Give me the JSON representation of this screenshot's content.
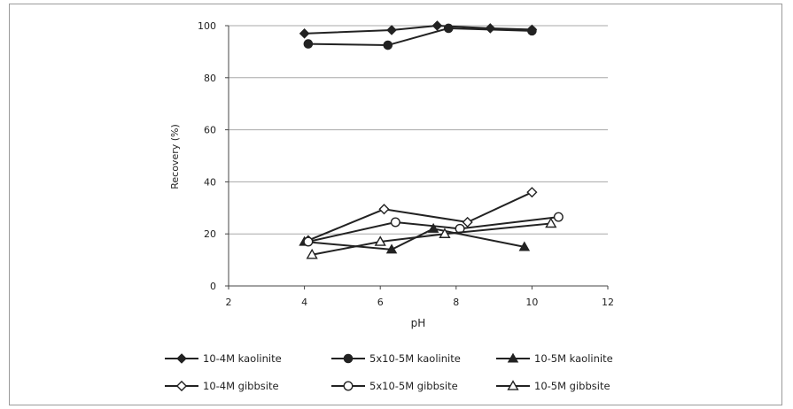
{
  "chart_data": {
    "type": "line",
    "title": "",
    "xlabel": "pH",
    "ylabel": "Recovery (%)",
    "xlim": [
      2,
      12
    ],
    "ylim": [
      0,
      100
    ],
    "xticks": [
      2,
      4,
      6,
      8,
      10,
      12
    ],
    "yticks": [
      0,
      20,
      40,
      60,
      80,
      100
    ],
    "grid": "horizontal",
    "legend_position": "bottom",
    "series": [
      {
        "name": "10-4M kaolinite",
        "marker": "diamond-filled",
        "color": "#222222",
        "points": [
          [
            4.0,
            97
          ],
          [
            6.3,
            98.3
          ],
          [
            7.5,
            100
          ],
          [
            8.9,
            99
          ],
          [
            10.0,
            98.5
          ]
        ]
      },
      {
        "name": "5x10-5M kaolinite",
        "marker": "circle-filled",
        "color": "#222222",
        "points": [
          [
            4.1,
            93
          ],
          [
            6.2,
            92.5
          ],
          [
            7.8,
            99
          ],
          [
            10.0,
            98
          ]
        ]
      },
      {
        "name": "10-5M kaolinite",
        "marker": "triangle-filled",
        "color": "#222222",
        "points": [
          [
            4.0,
            17
          ],
          [
            6.3,
            14
          ],
          [
            7.4,
            22
          ],
          [
            9.8,
            15
          ]
        ]
      },
      {
        "name": "10-4M gibbsite",
        "marker": "diamond-open",
        "color": "#222222",
        "points": [
          [
            4.1,
            17.5
          ],
          [
            6.1,
            29.5
          ],
          [
            8.3,
            24.5
          ],
          [
            10.0,
            36
          ]
        ]
      },
      {
        "name": "5x10-5M gibbsite",
        "marker": "circle-open",
        "color": "#222222",
        "points": [
          [
            4.1,
            17
          ],
          [
            6.4,
            24.5
          ],
          [
            8.1,
            22
          ],
          [
            10.7,
            26.5
          ]
        ]
      },
      {
        "name": "10-5M gibbsite",
        "marker": "triangle-open",
        "color": "#222222",
        "points": [
          [
            4.2,
            12
          ],
          [
            6.0,
            17
          ],
          [
            7.7,
            20
          ],
          [
            10.5,
            24
          ]
        ]
      }
    ]
  }
}
